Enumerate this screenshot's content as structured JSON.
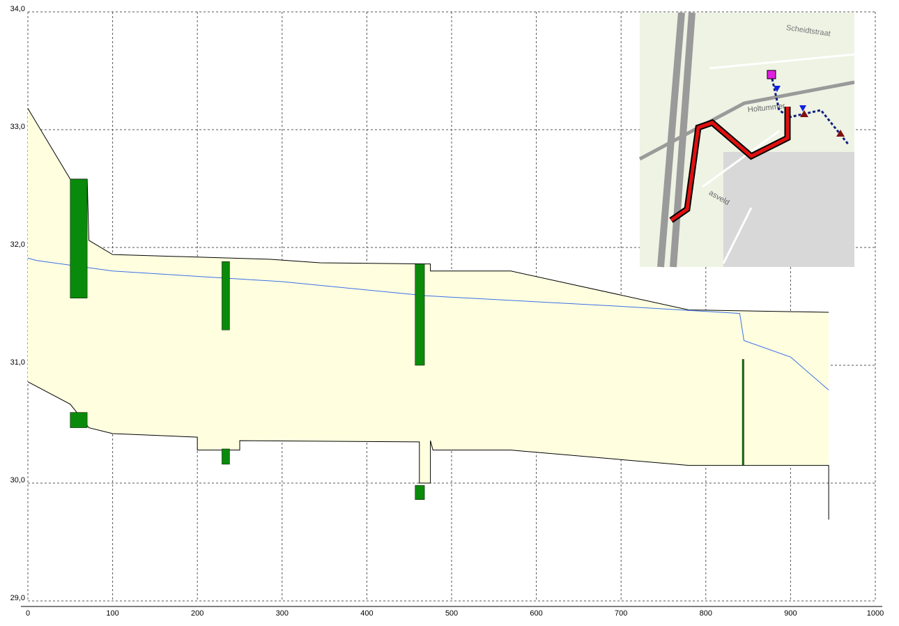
{
  "chart_data": {
    "type": "profile",
    "xlim": [
      0,
      1000
    ],
    "xticks": [
      0,
      100,
      200,
      300,
      400,
      500,
      600,
      700,
      800,
      900,
      1000
    ],
    "ylim": [
      29,
      34
    ],
    "yticks": [
      {
        "value": 29,
        "label": "29,0"
      },
      {
        "value": 30,
        "label": "30,0"
      },
      {
        "value": 31,
        "label": "31,0"
      },
      {
        "value": 32,
        "label": "32,0"
      },
      {
        "value": 33,
        "label": "33,0"
      },
      {
        "value": 34,
        "label": "34,0"
      }
    ],
    "grid": true,
    "fill": "#ffffe0",
    "series": [
      {
        "color": "#000000",
        "x": [
          0,
          50,
          70,
          72,
          100,
          285,
          345,
          470,
          475,
          475,
          570,
          780,
          945
        ],
        "values": [
          33.18,
          32.58,
          32.58,
          32.06,
          31.94,
          31.9,
          31.87,
          31.86,
          31.86,
          31.8,
          31.8,
          31.47,
          31.45
        ]
      },
      {
        "color": "#000000",
        "x": [
          0,
          50,
          72,
          100,
          200,
          200,
          250,
          250,
          462,
          462,
          475,
          475,
          478,
          570,
          780,
          945,
          945
        ],
        "values": [
          30.86,
          30.67,
          30.47,
          30.42,
          30.39,
          30.28,
          30.28,
          30.36,
          30.35,
          30.0,
          30.0,
          30.36,
          30.28,
          30.28,
          30.15,
          30.15,
          29.69
        ]
      },
      {
        "color": "#3a6ee8",
        "x": [
          0,
          10,
          100,
          300,
          470,
          700,
          840,
          845,
          900,
          945
        ],
        "values": [
          31.91,
          31.89,
          31.8,
          31.71,
          31.59,
          31.5,
          31.44,
          31.21,
          31.07,
          30.79
        ]
      }
    ],
    "structure_color": "#0a8a0a",
    "structures": [
      {
        "x": [
          50,
          70
        ],
        "values": [
          31.57,
          32.58
        ]
      },
      {
        "x": [
          50,
          70
        ],
        "values": [
          30.47,
          30.6
        ]
      },
      {
        "x": [
          229,
          238
        ],
        "values": [
          31.3,
          31.88
        ]
      },
      {
        "x": [
          229,
          238
        ],
        "values": [
          30.16,
          30.29
        ]
      },
      {
        "x": [
          457,
          468
        ],
        "values": [
          31.0,
          31.86
        ]
      },
      {
        "x": [
          457,
          468
        ],
        "values": [
          29.86,
          29.98
        ]
      },
      {
        "x": [
          843,
          845
        ],
        "values": [
          30.15,
          31.05
        ]
      }
    ]
  },
  "inset_map": {
    "labels": [
      "Scheidtstraat",
      "Holtummer",
      "asveld"
    ]
  }
}
